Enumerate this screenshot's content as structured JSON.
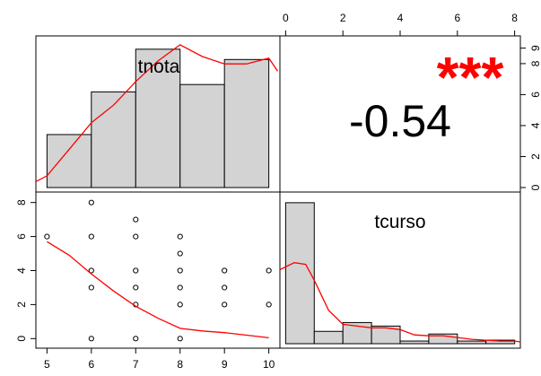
{
  "chart_data": [
    {
      "panel": "upper-left",
      "type": "bar",
      "subtype": "histogram-with-density",
      "variable_label": "tnota",
      "bin_edges": [
        5,
        6,
        7,
        8,
        9,
        10
      ],
      "values": [
        3.6,
        6.5,
        9.4,
        7.0,
        8.7
      ],
      "density_curve": {
        "x": [
          4.75,
          5.0,
          5.5,
          6.0,
          6.5,
          7.0,
          7.5,
          8.0,
          8.5,
          9.0,
          9.5,
          10.0,
          10.2
        ],
        "y": [
          0.4,
          0.8,
          2.6,
          4.4,
          5.6,
          7.2,
          8.6,
          9.7,
          8.9,
          8.4,
          8.4,
          8.8,
          7.9
        ]
      },
      "xlim": [
        4.75,
        10.25
      ],
      "ylim": [
        0,
        10
      ]
    },
    {
      "panel": "upper-right",
      "type": "table",
      "correlation_text": "-0.54",
      "significance_text": "***"
    },
    {
      "panel": "lower-left",
      "type": "scatter",
      "x": [
        5,
        6,
        6,
        6,
        6,
        6,
        7,
        7,
        7,
        7,
        7,
        7,
        8,
        8,
        8,
        8,
        8,
        8,
        9,
        9,
        9,
        10,
        10
      ],
      "y": [
        6,
        8,
        6,
        4,
        3,
        0,
        7,
        6,
        4,
        3,
        2,
        0,
        6,
        5,
        4,
        3,
        2,
        0,
        4,
        3,
        2,
        4,
        2
      ],
      "smooth_curve": {
        "x": [
          5,
          5.5,
          6,
          6.5,
          7,
          7.5,
          8,
          8.5,
          9,
          9.5,
          10
        ],
        "y": [
          5.7,
          4.9,
          3.8,
          2.8,
          1.9,
          1.2,
          0.6,
          0.45,
          0.35,
          0.2,
          0.05
        ]
      },
      "xticks": [
        "5",
        "6",
        "7",
        "8",
        "9",
        "10"
      ],
      "yticks": [
        "0",
        "2",
        "4",
        "6",
        "8"
      ],
      "xlim": [
        4.75,
        10.25
      ],
      "ylim": [
        -0.3,
        8.3
      ]
    },
    {
      "panel": "lower-right",
      "type": "bar",
      "subtype": "histogram-with-density",
      "variable_label": "tcurso",
      "bin_edges": [
        0,
        1,
        2,
        3,
        4,
        5,
        6,
        7,
        8
      ],
      "values": [
        8.0,
        0.7,
        1.2,
        1.0,
        0.15,
        0.55,
        0.15,
        0.2
      ],
      "density_curve": {
        "x": [
          -0.2,
          0.3,
          0.7,
          1.0,
          1.5,
          2.0,
          2.5,
          3.0,
          3.5,
          4.0,
          4.5,
          5.0,
          5.5,
          6.0,
          6.5,
          7.0,
          7.5,
          8.0,
          8.2
        ],
        "y": [
          4.2,
          4.6,
          4.5,
          3.6,
          1.9,
          1.1,
          1.0,
          0.9,
          0.9,
          0.8,
          0.5,
          0.45,
          0.45,
          0.35,
          0.25,
          0.2,
          0.15,
          0.15,
          0.1
        ]
      },
      "xticks": [
        "0",
        "2",
        "4",
        "6",
        "8"
      ],
      "xlim": [
        -0.2,
        8.2
      ],
      "ylim": [
        0,
        8.3
      ]
    }
  ],
  "colors": {
    "bar_fill": "#d3d3d3",
    "bar_stroke": "#000000",
    "fit_line": "#ff0000",
    "significance": "#ff0000",
    "text": "#000000"
  },
  "labels": {
    "tnota": "tnota",
    "tcurso": "tcurso",
    "correlation": "-0.54",
    "stars": "***"
  },
  "top_axis_ticks": [
    "0",
    "2",
    "4",
    "6",
    "8"
  ],
  "bottom_axis_ticks": [
    "5",
    "6",
    "7",
    "8",
    "9",
    "10"
  ],
  "left_axis_ticks": [
    "0",
    "2",
    "4",
    "6",
    "8"
  ],
  "right_axis_ticks": [
    "0",
    "2",
    "4",
    "6",
    "8",
    "9"
  ]
}
